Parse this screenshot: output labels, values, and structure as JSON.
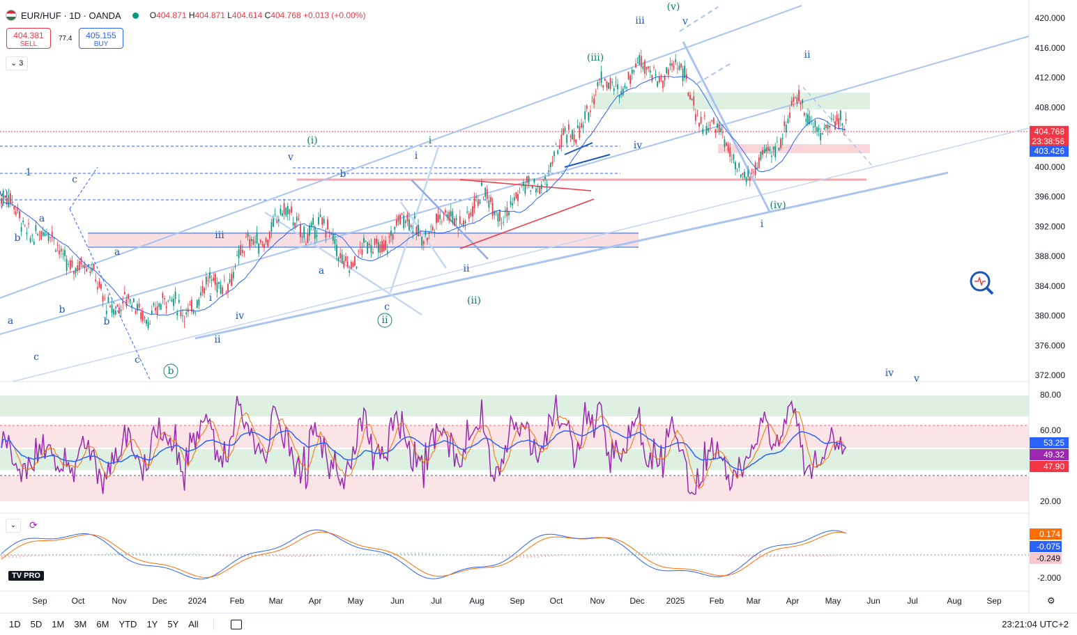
{
  "header": {
    "symbol": "EUR/HUF · 1D · OANDA",
    "open_label": "O",
    "open": "404.871",
    "high_label": "H",
    "high": "404.871",
    "low_label": "L",
    "low": "404.614",
    "close_label": "C",
    "close": "404.768",
    "change": "+0.013 (+0.00%)"
  },
  "trade": {
    "sell_price": "404.381",
    "sell_label": "SELL",
    "spread": "77.4",
    "buy_price": "405.155",
    "buy_label": "BUY"
  },
  "collapse_label": "3",
  "pane_collapse": "⌄",
  "logo_text": "TV PRO",
  "colors": {
    "accent_blue": "#2962ff",
    "red": "#f23645",
    "green": "#089981",
    "wave_blue": "#1e55b6",
    "wave_green": "#0f7f6f",
    "trendline": "#a9c4f0",
    "rsi": "#9c27b0",
    "ma_blue": "#2962ff",
    "ma_orange": "#ff6d00"
  },
  "chart_data": [
    {
      "type": "candlestick",
      "title": "EUR/HUF · 1D · OANDA",
      "ylim": [
        370,
        421
      ],
      "yticks": [
        "420.000",
        "416.000",
        "412.000",
        "408.000",
        "404.000",
        "400.000",
        "396.000",
        "392.000",
        "388.000",
        "384.000",
        "380.000",
        "376.000",
        "372.000"
      ],
      "x_labels": [
        "Sep",
        "Oct",
        "Nov",
        "Dec",
        "2024",
        "Feb",
        "Mar",
        "Apr",
        "May",
        "Jun",
        "Jul",
        "Aug",
        "Sep",
        "Oct",
        "Nov",
        "Dec",
        "2025",
        "Feb",
        "Mar",
        "Apr",
        "May",
        "Jun",
        "Jul",
        "Aug",
        "Sep"
      ],
      "price_series": [
        {
          "d": "Sep",
          "v": 391
        },
        {
          "d": "Oct",
          "v": 387
        },
        {
          "d": "Nov",
          "v": 381
        },
        {
          "d": "Dec",
          "v": 381
        },
        {
          "d": "2024",
          "v": 382
        },
        {
          "d": "Feb",
          "v": 387
        },
        {
          "d": "Mar",
          "v": 393
        },
        {
          "d": "Apr",
          "v": 392
        },
        {
          "d": "May",
          "v": 387
        },
        {
          "d": "Jun",
          "v": 392
        },
        {
          "d": "Jul",
          "v": 392
        },
        {
          "d": "Aug",
          "v": 395
        },
        {
          "d": "Sep",
          "v": 395
        },
        {
          "d": "Oct",
          "v": 401
        },
        {
          "d": "Nov",
          "v": 410
        },
        {
          "d": "Dec",
          "v": 413
        },
        {
          "d": "2025",
          "v": 413
        },
        {
          "d": "Feb",
          "v": 404
        },
        {
          "d": "Mar",
          "v": 398
        },
        {
          "d": "Apr",
          "v": 408
        },
        {
          "d": "May",
          "v": 405
        }
      ],
      "price_tags": [
        {
          "value": "404.768",
          "sub": "23:38:56",
          "color": "#f23645"
        },
        {
          "value": "403.426",
          "color": "#2962ff"
        }
      ],
      "wave_labels": [
        "v)",
        "b",
        "a",
        "c",
        "a",
        "b",
        "c",
        "b",
        "a",
        "c",
        "1",
        "i",
        "ii",
        "iii",
        "iv",
        "v",
        "i",
        "a",
        "b",
        "c",
        "ii",
        "i",
        "(i)",
        "ii",
        "(ii)",
        "(iii)",
        "iii",
        "(v)",
        "v",
        "iv",
        "(iv)",
        "i",
        "ii",
        "iv",
        "v",
        "b"
      ]
    },
    {
      "type": "line",
      "name": "RSI",
      "ylim": [
        15,
        85
      ],
      "yticks": [
        "80.00",
        "60.00",
        "20.00"
      ],
      "value_tags": [
        {
          "value": "53.25",
          "color": "#2962ff"
        },
        {
          "value": "49.32",
          "color": "#9c27b0"
        },
        {
          "value": "47.90",
          "color": "#f23645"
        }
      ]
    },
    {
      "type": "line",
      "name": "MACD",
      "yticks": [
        "-2.000"
      ],
      "value_tags": [
        {
          "value": "0.174",
          "color": "#ff6d00"
        },
        {
          "value": "-0.075",
          "color": "#2962ff"
        },
        {
          "value": "-0.249",
          "color": "#f7c9ce"
        }
      ]
    }
  ],
  "timeframes": [
    "1D",
    "5D",
    "1M",
    "3M",
    "6M",
    "YTD",
    "1Y",
    "5Y",
    "All"
  ],
  "clock": "23:21:04 UTC+2"
}
